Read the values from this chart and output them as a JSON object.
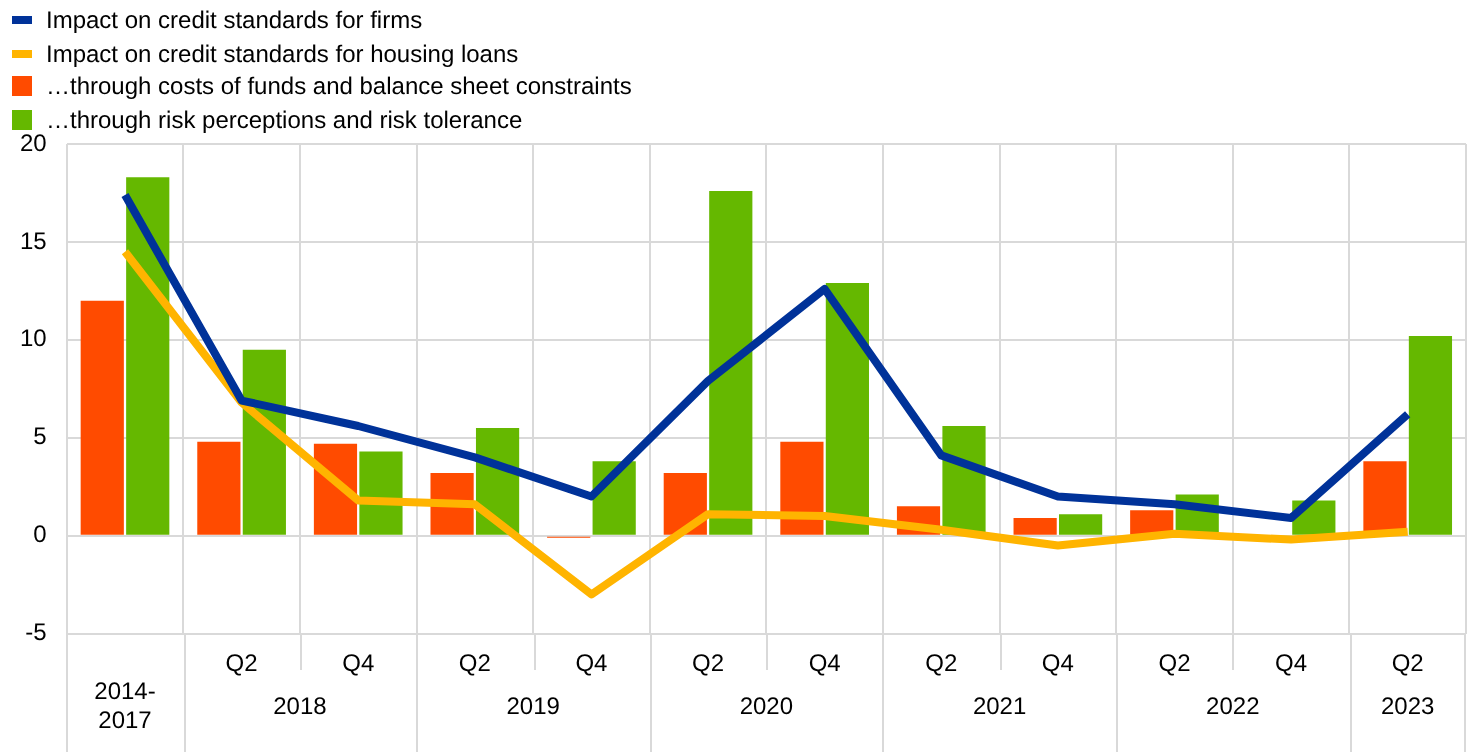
{
  "chart_data": {
    "type": "bar",
    "categories": [
      "2014-2017",
      "Q2",
      "Q4",
      "Q2",
      "Q4",
      "Q2",
      "Q4",
      "Q2",
      "Q4",
      "Q2",
      "Q4",
      "Q2"
    ],
    "annotations": [
      "2018",
      "2019",
      "2020",
      "2021",
      "2022",
      "2023"
    ],
    "series": [
      {
        "name": "Impact on credit standards for firms",
        "type": "line",
        "color": "#003299",
        "values": [
          17.4,
          6.9,
          5.6,
          4.0,
          2.0,
          7.9,
          12.6,
          4.1,
          2.0,
          1.6,
          0.9,
          6.2
        ]
      },
      {
        "name": "Impact on credit standards for housing loans",
        "type": "line",
        "color": "#ffb400",
        "values": [
          14.5,
          6.8,
          1.8,
          1.6,
          -3.0,
          1.1,
          1.0,
          0.3,
          -0.5,
          0.1,
          -0.2,
          0.2
        ]
      },
      {
        "name": "…through costs of funds and balance sheet constraints",
        "color": "#ff4b00",
        "values": [
          12.0,
          4.8,
          4.7,
          3.2,
          -0.1,
          3.2,
          4.8,
          1.5,
          0.9,
          1.3,
          0,
          3.8
        ]
      },
      {
        "name": "…through risk perceptions and risk tolerance",
        "color": "#65b800",
        "values": [
          18.3,
          9.5,
          4.3,
          5.5,
          3.8,
          17.6,
          12.9,
          5.6,
          1.1,
          2.1,
          1.8,
          10.2
        ]
      }
    ],
    "ylim": [
      -5,
      20
    ],
    "yticks": [
      -5,
      0,
      5,
      10,
      15,
      20
    ],
    "grid": true,
    "legend": "top left",
    "marker": "none",
    "line_style": "solid"
  }
}
